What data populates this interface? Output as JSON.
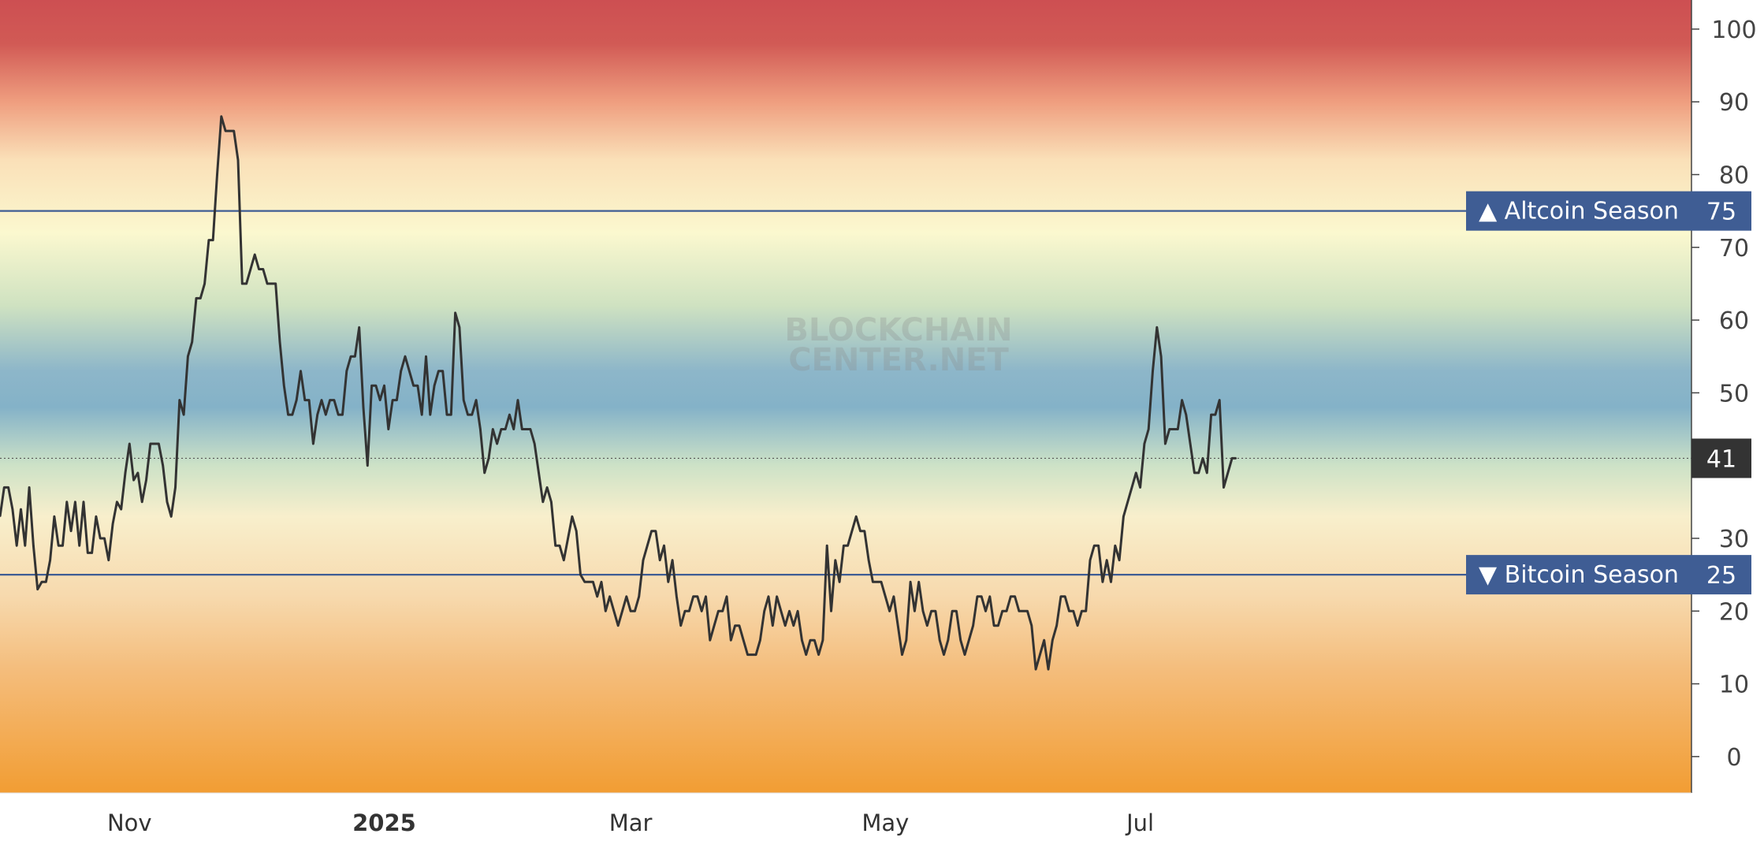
{
  "chart_data": {
    "type": "line",
    "title": "",
    "xlabel": "",
    "ylabel": "",
    "y_axis_side": "right",
    "ylim": [
      -5,
      104
    ],
    "yticks": [
      0,
      10,
      20,
      30,
      40,
      50,
      60,
      70,
      80,
      90,
      100
    ],
    "xlim": [
      "2024-10-01",
      "2025-11-10"
    ],
    "xticks": [
      {
        "date": "2024-11-01",
        "label": "Nov",
        "bold": false
      },
      {
        "date": "2025-01-01",
        "label": "2025",
        "bold": true
      },
      {
        "date": "2025-03-01",
        "label": "Mar",
        "bold": false
      },
      {
        "date": "2025-05-01",
        "label": "May",
        "bold": false
      },
      {
        "date": "2025-07-01",
        "label": "Jul",
        "bold": false
      }
    ],
    "grid": false,
    "background": "vertical gradient heatmap: red at 100, yellow near 75, blue near 50, orange near 0",
    "background_stops": [
      {
        "value": 104,
        "color": "#cd4f52"
      },
      {
        "value": 98,
        "color": "#d15a55"
      },
      {
        "value": 90,
        "color": "#ef9e7f"
      },
      {
        "value": 82,
        "color": "#fae0b8"
      },
      {
        "value": 72,
        "color": "#fbf8cf"
      },
      {
        "value": 62,
        "color": "#cfe2c1"
      },
      {
        "value": 53,
        "color": "#8db6c9"
      },
      {
        "value": 48,
        "color": "#84b2c8"
      },
      {
        "value": 40,
        "color": "#cde2c7"
      },
      {
        "value": 33,
        "color": "#f8efcc"
      },
      {
        "value": 22,
        "color": "#f7d9ad"
      },
      {
        "value": 12,
        "color": "#f4bd7c"
      },
      {
        "value": -5,
        "color": "#f29d33"
      }
    ],
    "line_color": "#333333",
    "series": [
      {
        "start_date": "2024-10-01",
        "values": [
          33,
          37,
          37,
          34,
          29,
          34,
          29,
          37,
          29,
          23,
          24,
          24,
          27,
          33,
          29,
          29,
          35,
          31,
          35,
          29,
          35,
          28,
          28,
          33,
          30,
          30,
          27,
          32,
          35,
          34,
          39,
          43,
          38,
          39,
          35,
          38,
          43,
          43,
          43,
          40,
          35,
          33,
          37,
          49,
          47,
          55,
          57,
          63,
          63,
          65,
          71,
          71,
          80,
          88,
          86,
          86,
          86,
          82,
          65,
          65,
          67,
          69,
          67,
          67,
          65,
          65,
          65,
          57,
          51,
          47,
          47,
          49,
          53,
          49,
          49,
          43,
          47,
          49,
          47,
          49,
          49,
          47,
          47,
          53,
          55,
          55,
          59,
          48,
          40,
          51,
          51,
          49,
          51,
          45,
          49,
          49,
          53,
          55,
          53,
          51,
          51,
          47,
          55,
          47,
          51,
          53,
          53,
          47,
          47,
          61,
          59,
          49,
          47,
          47,
          49,
          45,
          39,
          41,
          45,
          43,
          45,
          45,
          47,
          45,
          49,
          45,
          45,
          45,
          43,
          39,
          35,
          37,
          35,
          29,
          29,
          27,
          30,
          33,
          31,
          25,
          24,
          24,
          24,
          22,
          24,
          20,
          22,
          20,
          18,
          20,
          22,
          20,
          20,
          22,
          27,
          29,
          31,
          31,
          27,
          29,
          24,
          27,
          22,
          18,
          20,
          20,
          22,
          22,
          20,
          22,
          16,
          18,
          20,
          20,
          22,
          16,
          18,
          18,
          16,
          14,
          14,
          14,
          16,
          20,
          22,
          18,
          22,
          20,
          18,
          20,
          18,
          20,
          16,
          14,
          16,
          16,
          14,
          16,
          29,
          20,
          27,
          24,
          29,
          29,
          31,
          33,
          31,
          31,
          27,
          24,
          24,
          24,
          22,
          20,
          22,
          18,
          14,
          16,
          24,
          20,
          24,
          20,
          18,
          20,
          20,
          16,
          14,
          16,
          20,
          20,
          16,
          14,
          16,
          18,
          22,
          22,
          20,
          22,
          18,
          18,
          20,
          20,
          22,
          22,
          20,
          20,
          20,
          18,
          12,
          14,
          16,
          12,
          16,
          18,
          22,
          22,
          20,
          20,
          18,
          20,
          20,
          27,
          29,
          29,
          24,
          27,
          24,
          29,
          27,
          33,
          35,
          37,
          39,
          37,
          43,
          45,
          53,
          59,
          55,
          43,
          45,
          45,
          45,
          49,
          47,
          43,
          39,
          39,
          41,
          39,
          47,
          47,
          49,
          37,
          39,
          41,
          41
        ]
      }
    ],
    "current_value": {
      "value": 41,
      "label": "41",
      "color": "#333333"
    },
    "annotations": [
      {
        "name": "altcoin-season",
        "value": 75,
        "label": "▲ Altcoin Season",
        "value_label": "75",
        "color": "#3f5d94"
      },
      {
        "name": "bitcoin-season",
        "value": 25,
        "label": "▼ Bitcoin Season",
        "value_label": "25",
        "color": "#3f5d94"
      }
    ],
    "watermark": [
      "BLOCKCHAIN",
      "CENTER.NET"
    ]
  }
}
